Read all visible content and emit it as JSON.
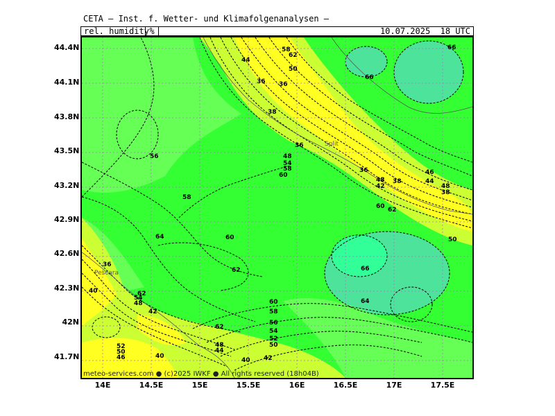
{
  "header": {
    "title": "CETA — Inst. f. Wetter- und Klimafolgenanalysen —",
    "parameter": "rel. humidity",
    "unit": "%",
    "valid": "10.07.2025  18 UTC"
  },
  "axes": {
    "lat_labels": [
      "44.4N",
      "44.1N",
      "43.8N",
      "43.5N",
      "43.2N",
      "42.9N",
      "42.6N",
      "42.3N",
      "42N",
      "41.7N"
    ],
    "lon_labels": [
      "14E",
      "14.5E",
      "15E",
      "15.5E",
      "16E",
      "16.5E",
      "17E",
      "17.5E"
    ]
  },
  "cities": [
    "Split",
    "Pescara"
  ],
  "contour_labels": [
    "36",
    "38",
    "40",
    "42",
    "44",
    "46",
    "48",
    "50",
    "52",
    "54",
    "56",
    "58",
    "60",
    "62",
    "64",
    "66"
  ],
  "footer": "meteo-services.com ● (c)2025 IWKF ● All rights reserved (18h04B)",
  "colors": {
    "humid_high": "#4de39a",
    "humid_mid": "#33ff33",
    "humid_lowmid": "#66ff55",
    "dry_mid": "#ccff33",
    "dry": "#ffff22"
  }
}
